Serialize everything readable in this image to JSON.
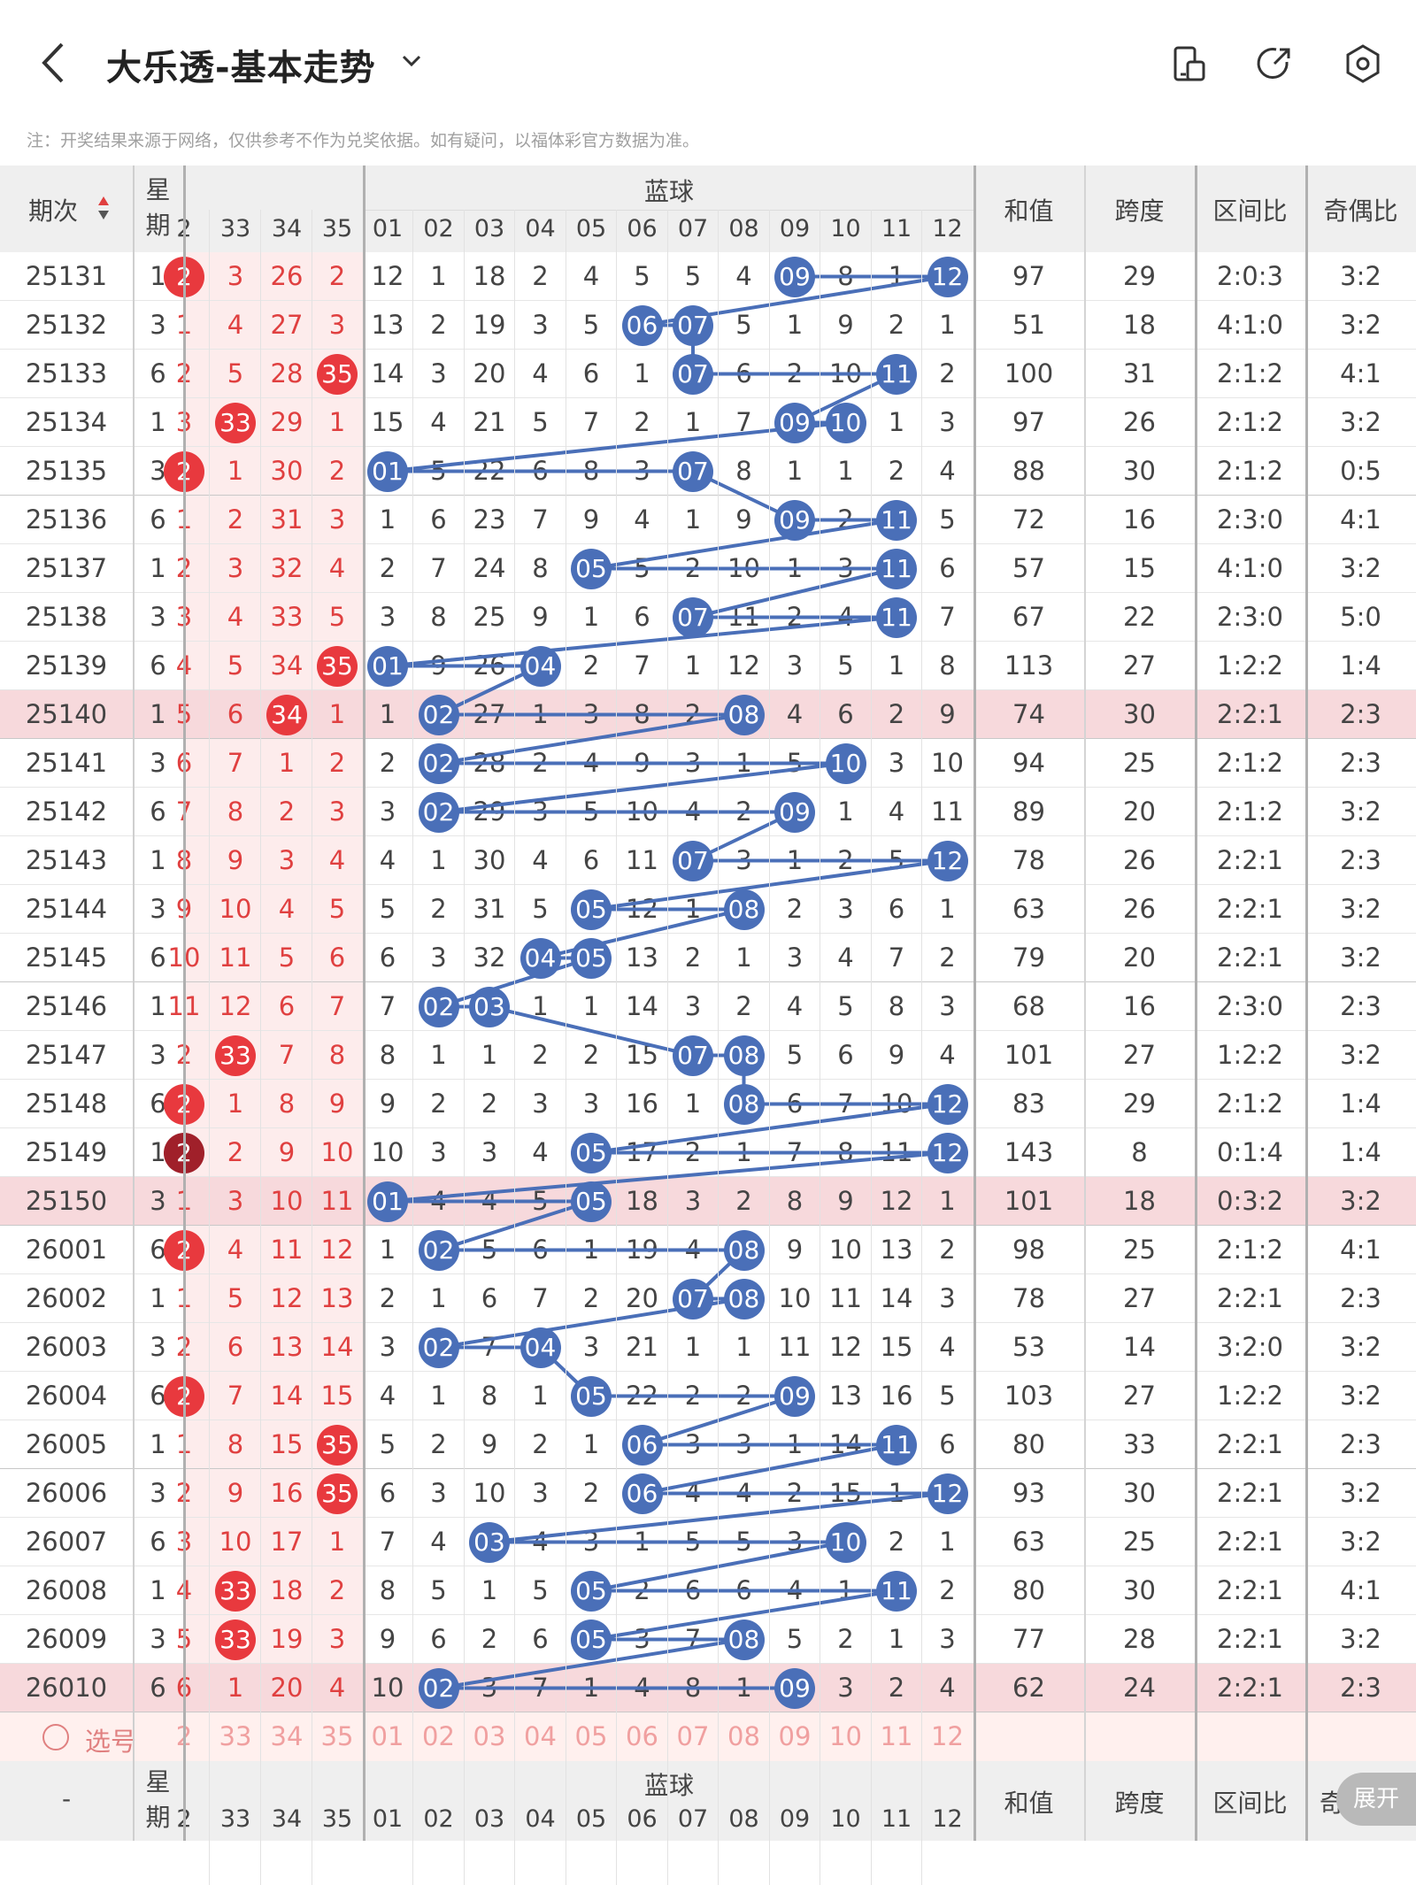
{
  "header": {
    "title": "大乐透-基本走势"
  },
  "note": "注：开奖结果来源于网络，仅供参考不作为兑奖依据。如有疑问，以福体彩官方数据为准。",
  "table": {
    "col_period": "期次",
    "col_week": "星期",
    "blue_title": "蓝球",
    "col_sum": "和值",
    "col_span": "跨度",
    "col_zone": "区间比",
    "col_oddeven": "奇偶比",
    "red_cols": [
      "2",
      "33",
      "34",
      "35"
    ],
    "blue_cols": [
      "01",
      "02",
      "03",
      "04",
      "05",
      "06",
      "07",
      "08",
      "09",
      "10",
      "11",
      "12"
    ],
    "select_label": "选号",
    "footer_period": "-",
    "footer_oddeven": "奇",
    "expand_label": "展开",
    "colors": {
      "blue_ball": "#4a6fb8",
      "red_ball": "#e8393e",
      "highlight_row": "#f7d9dc",
      "red_bg": "#fdecec"
    },
    "rows": [
      {
        "period": "25131",
        "week": "1",
        "red": [
          "2",
          "3",
          "26",
          "2"
        ],
        "redball": [
          0
        ],
        "blue": [
          "12",
          "1",
          "18",
          "2",
          "4",
          "5",
          "5",
          "4",
          "09",
          "8",
          "1",
          "12"
        ],
        "bb": [
          8,
          11
        ],
        "sum": "97",
        "span": "29",
        "zone": "2:0:3",
        "oe": "3:2"
      },
      {
        "period": "25132",
        "week": "3",
        "red": [
          "1",
          "4",
          "27",
          "3"
        ],
        "redball": [],
        "blue": [
          "13",
          "2",
          "19",
          "3",
          "5",
          "06",
          "07",
          "5",
          "1",
          "9",
          "2",
          "1"
        ],
        "bb": [
          5,
          6
        ],
        "sum": "51",
        "span": "18",
        "zone": "4:1:0",
        "oe": "3:2"
      },
      {
        "period": "25133",
        "week": "6",
        "red": [
          "2",
          "5",
          "28",
          "35"
        ],
        "redball": [
          3
        ],
        "blue": [
          "14",
          "3",
          "20",
          "4",
          "6",
          "1",
          "07",
          "6",
          "2",
          "10",
          "11",
          "2"
        ],
        "bb": [
          6,
          10
        ],
        "sum": "100",
        "span": "31",
        "zone": "2:1:2",
        "oe": "4:1"
      },
      {
        "period": "25134",
        "week": "1",
        "red": [
          "3",
          "33",
          "29",
          "1"
        ],
        "redball": [
          1
        ],
        "blue": [
          "15",
          "4",
          "21",
          "5",
          "7",
          "2",
          "1",
          "7",
          "09",
          "10",
          "1",
          "3"
        ],
        "bb": [
          8,
          9
        ],
        "sum": "97",
        "span": "26",
        "zone": "2:1:2",
        "oe": "3:2"
      },
      {
        "period": "25135",
        "week": "3",
        "red": [
          "2",
          "1",
          "30",
          "2"
        ],
        "redball": [
          0
        ],
        "blue": [
          "01",
          "5",
          "22",
          "6",
          "8",
          "3",
          "07",
          "8",
          "1",
          "1",
          "2",
          "4"
        ],
        "bb": [
          0,
          6
        ],
        "sum": "88",
        "span": "30",
        "zone": "2:1:2",
        "oe": "0:5"
      },
      {
        "period": "25136",
        "week": "6",
        "red": [
          "1",
          "2",
          "31",
          "3"
        ],
        "redball": [],
        "blue": [
          "1",
          "6",
          "23",
          "7",
          "9",
          "4",
          "1",
          "9",
          "09",
          "2",
          "11",
          "5"
        ],
        "bb": [
          8,
          10
        ],
        "sum": "72",
        "span": "16",
        "zone": "2:3:0",
        "oe": "4:1"
      },
      {
        "period": "25137",
        "week": "1",
        "red": [
          "2",
          "3",
          "32",
          "4"
        ],
        "redball": [],
        "blue": [
          "2",
          "7",
          "24",
          "8",
          "05",
          "5",
          "2",
          "10",
          "1",
          "3",
          "11",
          "6"
        ],
        "bb": [
          4,
          10
        ],
        "sum": "57",
        "span": "15",
        "zone": "4:1:0",
        "oe": "3:2"
      },
      {
        "period": "25138",
        "week": "3",
        "red": [
          "3",
          "4",
          "33",
          "5"
        ],
        "redball": [],
        "blue": [
          "3",
          "8",
          "25",
          "9",
          "1",
          "6",
          "07",
          "11",
          "2",
          "4",
          "11",
          "7"
        ],
        "bb": [
          6,
          10
        ],
        "sum": "67",
        "span": "22",
        "zone": "2:3:0",
        "oe": "5:0"
      },
      {
        "period": "25139",
        "week": "6",
        "red": [
          "4",
          "5",
          "34",
          "35"
        ],
        "redball": [
          3
        ],
        "blue": [
          "01",
          "9",
          "26",
          "04",
          "2",
          "7",
          "1",
          "12",
          "3",
          "5",
          "1",
          "8"
        ],
        "bb": [
          0,
          3
        ],
        "sum": "113",
        "span": "27",
        "zone": "1:2:2",
        "oe": "1:4"
      },
      {
        "period": "25140",
        "week": "1",
        "red": [
          "5",
          "6",
          "34",
          "1"
        ],
        "redball": [
          2
        ],
        "blue": [
          "1",
          "02",
          "27",
          "1",
          "3",
          "8",
          "2",
          "08",
          "4",
          "6",
          "2",
          "9"
        ],
        "bb": [
          1,
          7
        ],
        "sum": "74",
        "span": "30",
        "zone": "2:2:1",
        "oe": "2:3",
        "hl": true
      },
      {
        "period": "25141",
        "week": "3",
        "red": [
          "6",
          "7",
          "1",
          "2"
        ],
        "redball": [],
        "blue": [
          "2",
          "02",
          "28",
          "2",
          "4",
          "9",
          "3",
          "1",
          "5",
          "10",
          "3",
          "10"
        ],
        "bb": [
          1,
          9
        ],
        "sum": "94",
        "span": "25",
        "zone": "2:1:2",
        "oe": "2:3"
      },
      {
        "period": "25142",
        "week": "6",
        "red": [
          "7",
          "8",
          "2",
          "3"
        ],
        "redball": [],
        "blue": [
          "3",
          "02",
          "29",
          "3",
          "5",
          "10",
          "4",
          "2",
          "09",
          "1",
          "4",
          "11"
        ],
        "bb": [
          1,
          8
        ],
        "sum": "89",
        "span": "20",
        "zone": "2:1:2",
        "oe": "3:2"
      },
      {
        "period": "25143",
        "week": "1",
        "red": [
          "8",
          "9",
          "3",
          "4"
        ],
        "redball": [],
        "blue": [
          "4",
          "1",
          "30",
          "4",
          "6",
          "11",
          "07",
          "3",
          "1",
          "2",
          "5",
          "12"
        ],
        "bb": [
          6,
          11
        ],
        "sum": "78",
        "span": "26",
        "zone": "2:2:1",
        "oe": "2:3"
      },
      {
        "period": "25144",
        "week": "3",
        "red": [
          "9",
          "10",
          "4",
          "5"
        ],
        "redball": [],
        "blue": [
          "5",
          "2",
          "31",
          "5",
          "05",
          "12",
          "1",
          "08",
          "2",
          "3",
          "6",
          "1"
        ],
        "bb": [
          4,
          7
        ],
        "sum": "63",
        "span": "26",
        "zone": "2:2:1",
        "oe": "3:2"
      },
      {
        "period": "25145",
        "week": "6",
        "red": [
          "10",
          "11",
          "5",
          "6"
        ],
        "redball": [],
        "blue": [
          "6",
          "3",
          "32",
          "04",
          "05",
          "13",
          "2",
          "1",
          "3",
          "4",
          "7",
          "2"
        ],
        "bb": [
          3,
          4
        ],
        "sum": "79",
        "span": "20",
        "zone": "2:2:1",
        "oe": "3:2"
      },
      {
        "period": "25146",
        "week": "1",
        "red": [
          "11",
          "12",
          "6",
          "7"
        ],
        "redball": [],
        "blue": [
          "7",
          "02",
          "03",
          "1",
          "1",
          "14",
          "3",
          "2",
          "4",
          "5",
          "8",
          "3"
        ],
        "bb": [
          1,
          2
        ],
        "sum": "68",
        "span": "16",
        "zone": "2:3:0",
        "oe": "2:3"
      },
      {
        "period": "25147",
        "week": "3",
        "red": [
          "2",
          "33",
          "7",
          "8"
        ],
        "redball": [
          1
        ],
        "blue": [
          "8",
          "1",
          "1",
          "2",
          "2",
          "15",
          "07",
          "08",
          "5",
          "6",
          "9",
          "4"
        ],
        "bb": [
          6,
          7
        ],
        "sum": "101",
        "span": "27",
        "zone": "1:2:2",
        "oe": "3:2"
      },
      {
        "period": "25148",
        "week": "6",
        "red": [
          "2",
          "1",
          "8",
          "9"
        ],
        "redball": [
          0
        ],
        "blue": [
          "9",
          "2",
          "2",
          "3",
          "3",
          "16",
          "1",
          "08",
          "6",
          "7",
          "10",
          "12"
        ],
        "bb": [
          7,
          11
        ],
        "sum": "83",
        "span": "29",
        "zone": "2:1:2",
        "oe": "1:4"
      },
      {
        "period": "25149",
        "week": "1",
        "red": [
          "2",
          "2",
          "9",
          "10"
        ],
        "redball": [
          0
        ],
        "dark": true,
        "blue": [
          "10",
          "3",
          "3",
          "4",
          "05",
          "17",
          "2",
          "1",
          "7",
          "8",
          "11",
          "12"
        ],
        "bb": [
          4,
          11
        ],
        "sum": "143",
        "span": "8",
        "zone": "0:1:4",
        "oe": "1:4"
      },
      {
        "period": "25150",
        "week": "3",
        "red": [
          "1",
          "3",
          "10",
          "11"
        ],
        "redball": [],
        "blue": [
          "01",
          "4",
          "4",
          "5",
          "05",
          "18",
          "3",
          "2",
          "8",
          "9",
          "12",
          "1"
        ],
        "bb": [
          0,
          4
        ],
        "sum": "101",
        "span": "18",
        "zone": "0:3:2",
        "oe": "3:2",
        "hl": true
      },
      {
        "period": "26001",
        "week": "6",
        "red": [
          "2",
          "4",
          "11",
          "12"
        ],
        "redball": [
          0
        ],
        "blue": [
          "1",
          "02",
          "5",
          "6",
          "1",
          "19",
          "4",
          "08",
          "9",
          "10",
          "13",
          "2"
        ],
        "bb": [
          1,
          7
        ],
        "sum": "98",
        "span": "25",
        "zone": "2:1:2",
        "oe": "4:1"
      },
      {
        "period": "26002",
        "week": "1",
        "red": [
          "1",
          "5",
          "12",
          "13"
        ],
        "redball": [],
        "blue": [
          "2",
          "1",
          "6",
          "7",
          "2",
          "20",
          "07",
          "08",
          "10",
          "11",
          "14",
          "3"
        ],
        "bb": [
          6,
          7
        ],
        "sum": "78",
        "span": "27",
        "zone": "2:2:1",
        "oe": "2:3"
      },
      {
        "period": "26003",
        "week": "3",
        "red": [
          "2",
          "6",
          "13",
          "14"
        ],
        "redball": [],
        "blue": [
          "3",
          "02",
          "7",
          "04",
          "3",
          "21",
          "1",
          "1",
          "11",
          "12",
          "15",
          "4"
        ],
        "bb": [
          1,
          3
        ],
        "sum": "53",
        "span": "14",
        "zone": "3:2:0",
        "oe": "3:2"
      },
      {
        "period": "26004",
        "week": "6",
        "red": [
          "2",
          "7",
          "14",
          "15"
        ],
        "redball": [
          0
        ],
        "blue": [
          "4",
          "1",
          "8",
          "1",
          "05",
          "22",
          "2",
          "2",
          "09",
          "13",
          "16",
          "5"
        ],
        "bb": [
          4,
          8
        ],
        "sum": "103",
        "span": "27",
        "zone": "1:2:2",
        "oe": "3:2"
      },
      {
        "period": "26005",
        "week": "1",
        "red": [
          "1",
          "8",
          "15",
          "35"
        ],
        "redball": [
          3
        ],
        "blue": [
          "5",
          "2",
          "9",
          "2",
          "1",
          "06",
          "3",
          "3",
          "1",
          "14",
          "11",
          "6"
        ],
        "bb": [
          5,
          10
        ],
        "sum": "80",
        "span": "33",
        "zone": "2:2:1",
        "oe": "2:3"
      },
      {
        "period": "26006",
        "week": "3",
        "red": [
          "2",
          "9",
          "16",
          "35"
        ],
        "redball": [
          3
        ],
        "blue": [
          "6",
          "3",
          "10",
          "3",
          "2",
          "06",
          "4",
          "4",
          "2",
          "15",
          "1",
          "12"
        ],
        "bb": [
          5,
          11
        ],
        "sum": "93",
        "span": "30",
        "zone": "2:2:1",
        "oe": "3:2"
      },
      {
        "period": "26007",
        "week": "6",
        "red": [
          "3",
          "10",
          "17",
          "1"
        ],
        "redball": [],
        "blue": [
          "7",
          "4",
          "03",
          "4",
          "3",
          "1",
          "5",
          "5",
          "3",
          "10",
          "2",
          "1"
        ],
        "bb": [
          2,
          9
        ],
        "sum": "63",
        "span": "25",
        "zone": "2:2:1",
        "oe": "3:2"
      },
      {
        "period": "26008",
        "week": "1",
        "red": [
          "4",
          "33",
          "18",
          "2"
        ],
        "redball": [
          1
        ],
        "blue": [
          "8",
          "5",
          "1",
          "5",
          "05",
          "2",
          "6",
          "6",
          "4",
          "1",
          "11",
          "2"
        ],
        "bb": [
          4,
          10
        ],
        "sum": "80",
        "span": "30",
        "zone": "2:2:1",
        "oe": "4:1"
      },
      {
        "period": "26009",
        "week": "3",
        "red": [
          "5",
          "33",
          "19",
          "3"
        ],
        "redball": [
          1
        ],
        "blue": [
          "9",
          "6",
          "2",
          "6",
          "05",
          "3",
          "7",
          "08",
          "5",
          "2",
          "1",
          "3"
        ],
        "bb": [
          4,
          7
        ],
        "sum": "77",
        "span": "28",
        "zone": "2:2:1",
        "oe": "3:2"
      },
      {
        "period": "26010",
        "week": "6",
        "red": [
          "6",
          "1",
          "20",
          "4"
        ],
        "redball": [],
        "blue": [
          "10",
          "02",
          "3",
          "7",
          "1",
          "4",
          "8",
          "1",
          "09",
          "3",
          "2",
          "4"
        ],
        "bb": [
          1,
          8
        ],
        "sum": "62",
        "span": "24",
        "zone": "2:2:1",
        "oe": "2:3",
        "hl": true
      }
    ]
  }
}
